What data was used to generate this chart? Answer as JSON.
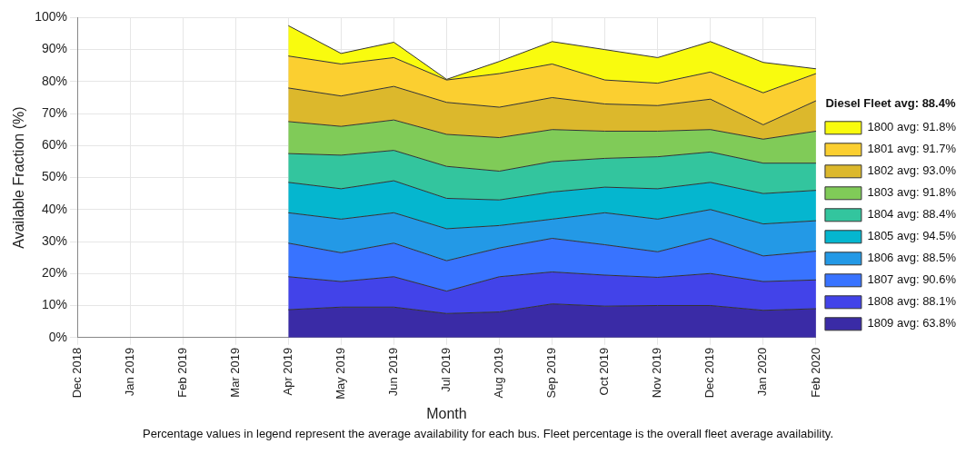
{
  "chart_data": {
    "type": "area",
    "stacked": true,
    "xlabel": "Month",
    "ylabel": "Available Fraction (%)",
    "legend_title": "Diesel Fleet avg: 88.4%",
    "annotations": [
      "Percentage values in legend represent the average availability for each bus. Fleet percentage is the overall fleet average availability."
    ],
    "categories": [
      "Dec 2018",
      "Jan 2019",
      "Feb 2019",
      "Mar 2019",
      "Apr 2019",
      "May 2019",
      "Jun 2019",
      "Jul 2019",
      "Aug 2019",
      "Sep 2019",
      "Oct 2019",
      "Nov 2019",
      "Dec 2019",
      "Jan 2020",
      "Feb 2020"
    ],
    "series": [
      {
        "name": "1809 avg: 63.8%",
        "color": "#3a2ba6",
        "values": [
          null,
          null,
          null,
          null,
          8.7,
          9.5,
          9.5,
          7.5,
          8,
          10.5,
          9.8,
          10,
          10,
          8.5,
          9
        ]
      },
      {
        "name": "1808 avg: 88.1%",
        "color": "#4243e9",
        "values": [
          null,
          null,
          null,
          null,
          10.3,
          8,
          9.5,
          7,
          11,
          10,
          9.7,
          8.8,
          10,
          9,
          9
        ]
      },
      {
        "name": "1807 avg: 90.6%",
        "color": "#3873ff",
        "values": [
          null,
          null,
          null,
          null,
          10.5,
          9,
          10.5,
          9.5,
          9,
          10.5,
          9.5,
          8,
          11,
          8,
          9
        ]
      },
      {
        "name": "1806 avg: 88.5%",
        "color": "#2399e6",
        "values": [
          null,
          null,
          null,
          null,
          9.5,
          10.5,
          9.5,
          10,
          7,
          6,
          10,
          10.2,
          9,
          10,
          9.5
        ]
      },
      {
        "name": "1805 avg: 94.5%",
        "color": "#05b6cf",
        "values": [
          null,
          null,
          null,
          null,
          9.5,
          9.5,
          10,
          9.5,
          8,
          8.5,
          8,
          9.5,
          8.5,
          9.5,
          9.5
        ]
      },
      {
        "name": "1804 avg: 88.4%",
        "color": "#33c59e",
        "values": [
          null,
          null,
          null,
          null,
          9,
          10.5,
          9.5,
          10,
          9,
          9.5,
          9,
          10,
          9.5,
          9.5,
          8.5
        ]
      },
      {
        "name": "1803 avg: 91.8%",
        "color": "#80cb58",
        "values": [
          null,
          null,
          null,
          null,
          10,
          9,
          9.5,
          10,
          10.5,
          10,
          8.5,
          8,
          7,
          7.5,
          10
        ]
      },
      {
        "name": "1802 avg: 93.0%",
        "color": "#dcb82c",
        "values": [
          null,
          null,
          null,
          null,
          10.5,
          9.5,
          10.5,
          10,
          9.5,
          10,
          8.5,
          8,
          9.5,
          4.5,
          9.5
        ]
      },
      {
        "name": "1801 avg: 91.7%",
        "color": "#fbcf30",
        "values": [
          null,
          null,
          null,
          null,
          10,
          10,
          9,
          7,
          10.5,
          10.5,
          7.5,
          7,
          8.5,
          10,
          8.5
        ]
      },
      {
        "name": "1800 avg: 91.8%",
        "color": "#f9fb0e",
        "values": [
          null,
          null,
          null,
          null,
          9.5,
          3.3,
          4.8,
          0.2,
          3.8,
          7,
          9.5,
          8,
          9.5,
          9.5,
          1.5
        ]
      }
    ],
    "ylim": [
      0,
      100
    ],
    "yticks": [
      {
        "value": 0,
        "label": "0%"
      },
      {
        "value": 10,
        "label": "10%"
      },
      {
        "value": 20,
        "label": "20%"
      },
      {
        "value": 30,
        "label": "30%"
      },
      {
        "value": 40,
        "label": "40%"
      },
      {
        "value": 50,
        "label": "50%"
      },
      {
        "value": 60,
        "label": "60%"
      },
      {
        "value": 70,
        "label": "70%"
      },
      {
        "value": 80,
        "label": "80%"
      },
      {
        "value": 90,
        "label": "90%"
      },
      {
        "value": 100,
        "label": "100%"
      }
    ],
    "grid": true,
    "legend": "right"
  }
}
